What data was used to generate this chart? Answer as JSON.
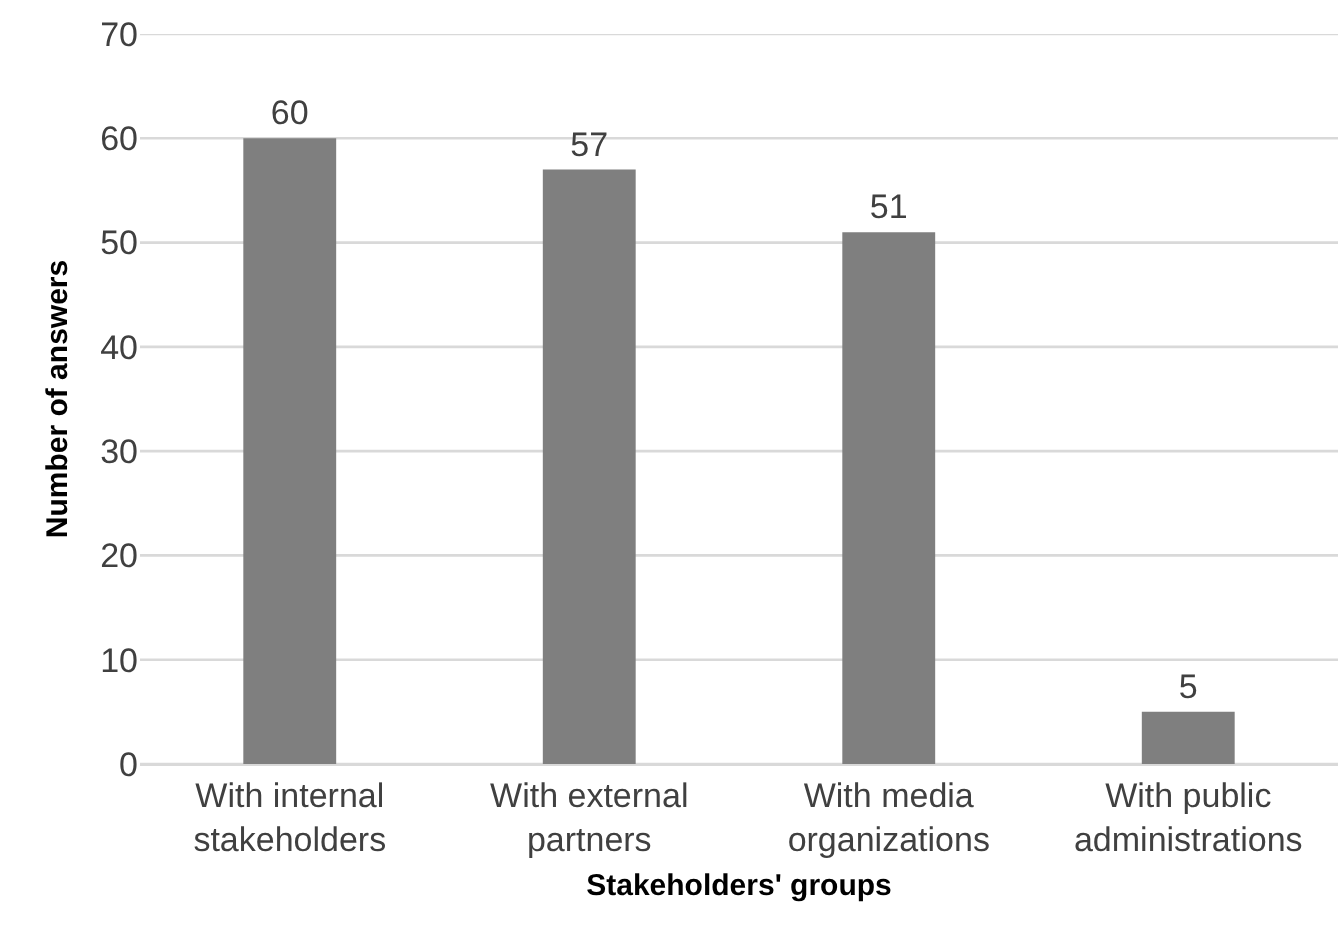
{
  "chart_data": {
    "type": "bar",
    "xlabel": "Stakeholders' groups",
    "ylabel": "Number of answers",
    "categories": [
      "With internal stakeholders",
      "With external partners",
      "With media organizations",
      "With public administrations"
    ],
    "values": [
      60,
      57,
      51,
      5
    ],
    "color": "#7f7f7f",
    "ylim": [
      0,
      70
    ],
    "yticks": [
      0,
      10,
      20,
      30,
      40,
      50,
      60,
      70
    ],
    "grid": "y",
    "data_labels": true
  }
}
